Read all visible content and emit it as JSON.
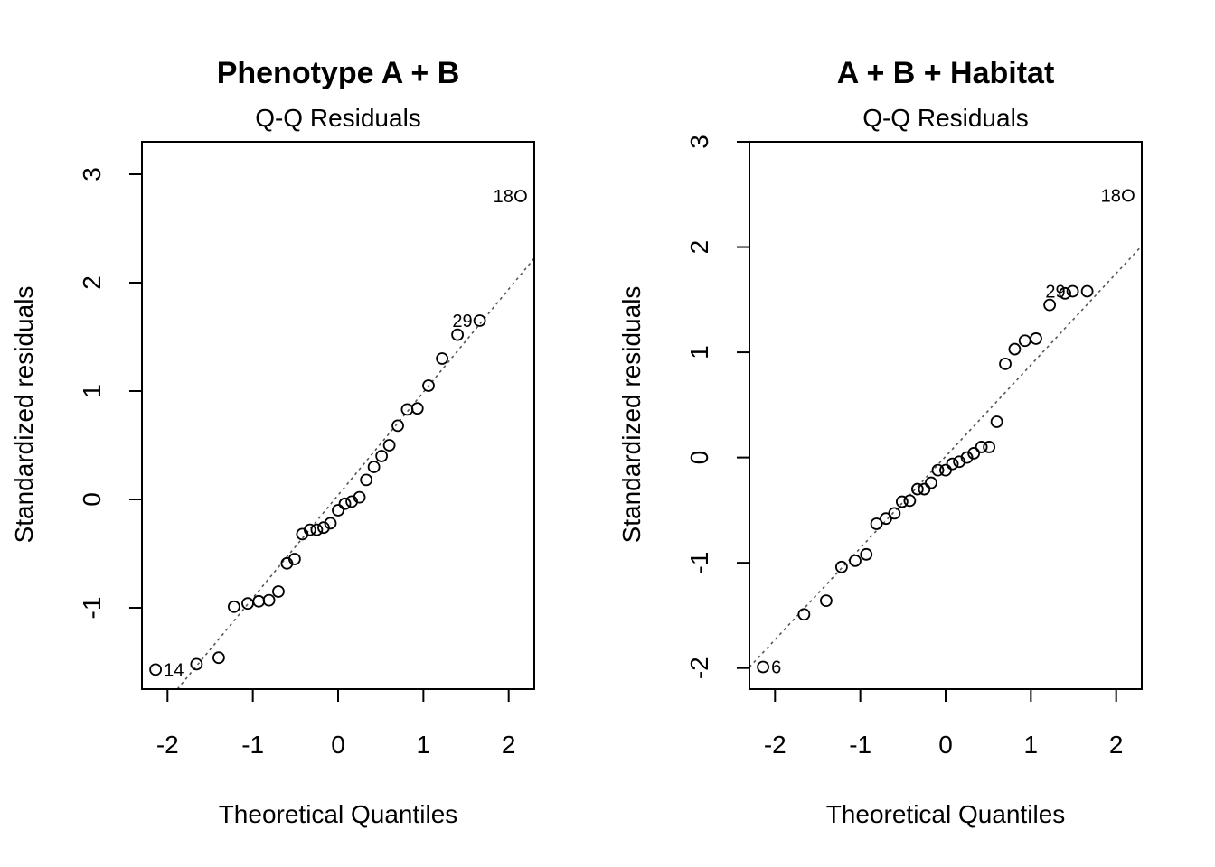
{
  "chart_data": [
    {
      "type": "scatter",
      "title": "Phenotype A + B",
      "subtitle": "Q-Q Residuals",
      "xlabel": "Theoretical Quantiles",
      "ylabel": "Standardized residuals",
      "xlim": [
        -2.3,
        2.3
      ],
      "ylim": [
        -1.75,
        3.3
      ],
      "xticks": [
        -2,
        -1,
        0,
        1,
        2
      ],
      "yticks": [
        -1,
        0,
        1,
        2,
        3
      ],
      "xtick_labels": [
        "-2",
        "-1",
        "0",
        "1",
        "2"
      ],
      "ytick_labels": [
        "-1",
        "0",
        "1",
        "2",
        "3"
      ],
      "grid": false,
      "reference_line": {
        "intercept": 0.04,
        "slope": 0.95,
        "style": "dotted"
      },
      "points": [
        {
          "x": -2.14,
          "y": -1.57
        },
        {
          "x": -1.66,
          "y": -1.52
        },
        {
          "x": -1.4,
          "y": -1.46
        },
        {
          "x": -1.22,
          "y": -0.99
        },
        {
          "x": -1.06,
          "y": -0.96
        },
        {
          "x": -0.93,
          "y": -0.94
        },
        {
          "x": -0.81,
          "y": -0.93
        },
        {
          "x": -0.7,
          "y": -0.85
        },
        {
          "x": -0.6,
          "y": -0.59
        },
        {
          "x": -0.51,
          "y": -0.55
        },
        {
          "x": -0.42,
          "y": -0.32
        },
        {
          "x": -0.33,
          "y": -0.28
        },
        {
          "x": -0.25,
          "y": -0.28
        },
        {
          "x": -0.17,
          "y": -0.26
        },
        {
          "x": -0.09,
          "y": -0.22
        },
        {
          "x": 0.0,
          "y": -0.1
        },
        {
          "x": 0.08,
          "y": -0.04
        },
        {
          "x": 0.16,
          "y": -0.02
        },
        {
          "x": 0.25,
          "y": 0.02
        },
        {
          "x": 0.33,
          "y": 0.18
        },
        {
          "x": 0.42,
          "y": 0.3
        },
        {
          "x": 0.51,
          "y": 0.4
        },
        {
          "x": 0.6,
          "y": 0.5
        },
        {
          "x": 0.7,
          "y": 0.68
        },
        {
          "x": 0.81,
          "y": 0.83
        },
        {
          "x": 0.93,
          "y": 0.84
        },
        {
          "x": 1.06,
          "y": 1.05
        },
        {
          "x": 1.22,
          "y": 1.3
        },
        {
          "x": 1.4,
          "y": 1.52
        },
        {
          "x": 1.66,
          "y": 1.65
        },
        {
          "x": 2.14,
          "y": 2.8
        }
      ],
      "point_labels": [
        {
          "text": "18",
          "x": 2.14,
          "y": 2.8,
          "side": "left"
        },
        {
          "text": "29",
          "x": 1.66,
          "y": 1.65,
          "side": "left"
        },
        {
          "text": "14",
          "x": -2.14,
          "y": -1.57,
          "side": "right"
        }
      ]
    },
    {
      "type": "scatter",
      "title": "A + B + Habitat",
      "subtitle": "Q-Q Residuals",
      "xlabel": "Theoretical Quantiles",
      "ylabel": "Standardized residuals",
      "xlim": [
        -2.3,
        2.3
      ],
      "ylim": [
        -2.2,
        3.0
      ],
      "xticks": [
        -2,
        -1,
        0,
        1,
        2
      ],
      "yticks": [
        -2,
        -1,
        0,
        1,
        2,
        3
      ],
      "xtick_labels": [
        "-2",
        "-1",
        "0",
        "1",
        "2"
      ],
      "ytick_labels": [
        "-2",
        "-1",
        "0",
        "1",
        "2",
        "3"
      ],
      "grid": false,
      "reference_line": {
        "intercept": 0.01,
        "slope": 0.87,
        "style": "dotted"
      },
      "points": [
        {
          "x": -2.14,
          "y": -1.99
        },
        {
          "x": -1.66,
          "y": -1.49
        },
        {
          "x": -1.4,
          "y": -1.36
        },
        {
          "x": -1.22,
          "y": -1.04
        },
        {
          "x": -1.06,
          "y": -0.98
        },
        {
          "x": -0.93,
          "y": -0.92
        },
        {
          "x": -0.81,
          "y": -0.63
        },
        {
          "x": -0.7,
          "y": -0.58
        },
        {
          "x": -0.6,
          "y": -0.53
        },
        {
          "x": -0.51,
          "y": -0.42
        },
        {
          "x": -0.42,
          "y": -0.41
        },
        {
          "x": -0.33,
          "y": -0.3
        },
        {
          "x": -0.25,
          "y": -0.3
        },
        {
          "x": -0.17,
          "y": -0.24
        },
        {
          "x": -0.09,
          "y": -0.12
        },
        {
          "x": 0.0,
          "y": -0.12
        },
        {
          "x": 0.08,
          "y": -0.06
        },
        {
          "x": 0.16,
          "y": -0.04
        },
        {
          "x": 0.25,
          "y": 0.0
        },
        {
          "x": 0.33,
          "y": 0.04
        },
        {
          "x": 0.42,
          "y": 0.1
        },
        {
          "x": 0.51,
          "y": 0.1
        },
        {
          "x": 0.6,
          "y": 0.34
        },
        {
          "x": 0.7,
          "y": 0.89
        },
        {
          "x": 0.81,
          "y": 1.03
        },
        {
          "x": 0.93,
          "y": 1.11
        },
        {
          "x": 1.06,
          "y": 1.13
        },
        {
          "x": 1.22,
          "y": 1.45
        },
        {
          "x": 1.4,
          "y": 1.56
        },
        {
          "x": 1.49,
          "y": 1.58
        },
        {
          "x": 1.66,
          "y": 1.58
        },
        {
          "x": 2.14,
          "y": 2.49
        }
      ],
      "point_labels": [
        {
          "text": "18",
          "x": 2.14,
          "y": 2.49,
          "side": "left"
        },
        {
          "text": "29",
          "x": 1.49,
          "y": 1.58,
          "side": "left"
        },
        {
          "text": "6",
          "x": -2.14,
          "y": -1.99,
          "side": "right"
        }
      ]
    }
  ]
}
